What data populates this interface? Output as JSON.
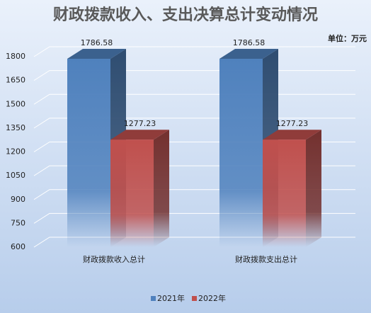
{
  "chart_data": {
    "type": "bar3d",
    "title": "财政拨款收入、支出决算总计变动情况",
    "unit_label": "单位：万元",
    "categories": [
      "财政拨款收入总计",
      "财政拨款支出总计"
    ],
    "series": [
      {
        "name": "2021年",
        "color": "#4f81bd",
        "values": [
          1786.58,
          1786.58
        ]
      },
      {
        "name": "2022年",
        "color": "#c0504d",
        "values": [
          1277.23,
          1277.23
        ]
      }
    ],
    "ylim": [
      600,
      1800
    ],
    "yticks": [
      600,
      750,
      900,
      1050,
      1200,
      1350,
      1500,
      1650,
      1800
    ],
    "grid": true,
    "legend": "bottom"
  }
}
